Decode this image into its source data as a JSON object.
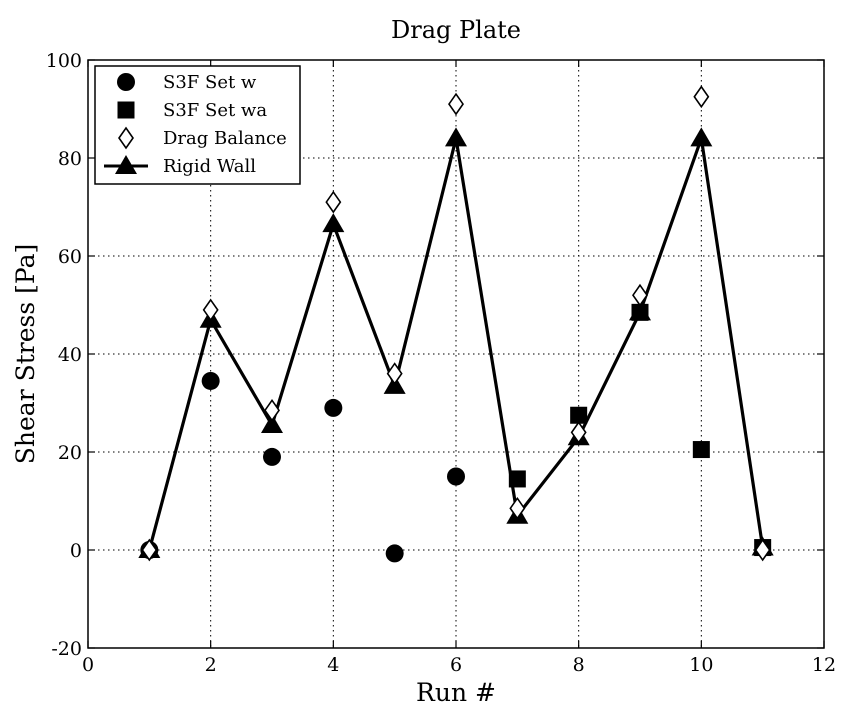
{
  "chart_data": {
    "type": "line",
    "title": "Drag Plate",
    "xlabel": "Run #",
    "ylabel": "Shear Stress  [Pa]",
    "xlim": [
      0,
      12
    ],
    "ylim": [
      -20,
      100
    ],
    "xticks": [
      0,
      2,
      4,
      6,
      8,
      10,
      12
    ],
    "yticks": [
      -20,
      0,
      20,
      40,
      60,
      80,
      100
    ],
    "grid": true,
    "legend_position": "top-left",
    "series": [
      {
        "name": "S3F Set w",
        "marker": "circle",
        "line": false,
        "x": [
          1,
          2,
          3,
          4,
          5,
          6
        ],
        "y": [
          0,
          34.5,
          19,
          29,
          -0.7,
          15
        ]
      },
      {
        "name": "S3F Set wa",
        "marker": "square",
        "line": false,
        "x": [
          7,
          8,
          9,
          10,
          11
        ],
        "y": [
          14.5,
          27.5,
          48.5,
          20.5,
          0.5
        ]
      },
      {
        "name": "Drag Balance",
        "marker": "diamond-open",
        "line": false,
        "x": [
          1,
          2,
          3,
          4,
          5,
          6,
          7,
          8,
          9,
          10,
          11
        ],
        "y": [
          0,
          49,
          28.5,
          71,
          36,
          91,
          8.5,
          24,
          52,
          92.5,
          0
        ]
      },
      {
        "name": "Rigid Wall",
        "marker": "triangle",
        "line": true,
        "x": [
          1,
          2,
          3,
          4,
          5,
          6,
          7,
          8,
          9,
          10,
          11
        ],
        "y": [
          0,
          47,
          25.5,
          66.5,
          33.5,
          84,
          7,
          23,
          48.5,
          84,
          0.5
        ]
      }
    ]
  }
}
